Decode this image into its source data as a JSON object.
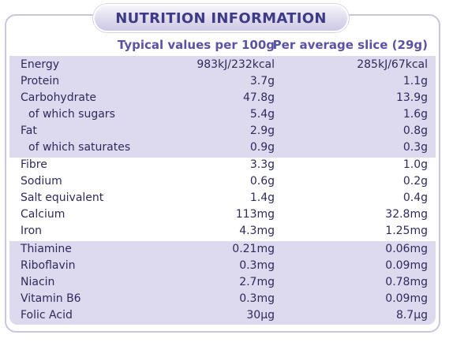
{
  "title": "NUTRITION INFORMATION",
  "columns": {
    "per100": "Typical values per 100g",
    "perSlice": "Per average slice (29g)"
  },
  "rows": [
    {
      "label": "Energy",
      "per100": "983kJ/232kcal",
      "perSlice": "285kJ/67kcal",
      "indent": false
    },
    {
      "label": "Protein",
      "per100": "3.7g",
      "perSlice": "1.1g",
      "indent": false
    },
    {
      "label": "Carbohydrate",
      "per100": "47.8g",
      "perSlice": "13.9g",
      "indent": false
    },
    {
      "label": "of which sugars",
      "per100": "5.4g",
      "perSlice": "1.6g",
      "indent": true
    },
    {
      "label": "Fat",
      "per100": "2.9g",
      "perSlice": "0.8g",
      "indent": false
    },
    {
      "label": "of which saturates",
      "per100": "0.9g",
      "perSlice": "0.3g",
      "indent": true
    },
    {
      "label": "Fibre",
      "per100": "3.3g",
      "perSlice": "1.0g",
      "indent": false
    },
    {
      "label": "Sodium",
      "per100": "0.6g",
      "perSlice": "0.2g",
      "indent": false
    },
    {
      "label": "Salt equivalent",
      "per100": "1.4g",
      "perSlice": "0.4g",
      "indent": false
    },
    {
      "label": "Calcium",
      "per100": "113mg",
      "perSlice": "32.8mg",
      "indent": false
    },
    {
      "label": "Iron",
      "per100": "4.3mg",
      "perSlice": "1.25mg",
      "indent": false
    },
    {
      "label": "Thiamine",
      "per100": "0.21mg",
      "perSlice": "0.06mg",
      "indent": false
    },
    {
      "label": "Riboflavin",
      "per100": "0.3mg",
      "perSlice": "0.09mg",
      "indent": false
    },
    {
      "label": "Niacin",
      "per100": "2.7mg",
      "perSlice": "0.78mg",
      "indent": false
    },
    {
      "label": "Vitamin B6",
      "per100": "0.3mg",
      "perSlice": "0.09mg",
      "indent": false
    },
    {
      "label": "Folic Acid",
      "per100": "30µg",
      "perSlice": "8.7µg",
      "indent": false
    }
  ],
  "colors": {
    "band": "#ddd9ee",
    "border": "#c9c4e2",
    "title": "#3f3a87",
    "header": "#5a52a3",
    "text": "#2d2b5c"
  }
}
